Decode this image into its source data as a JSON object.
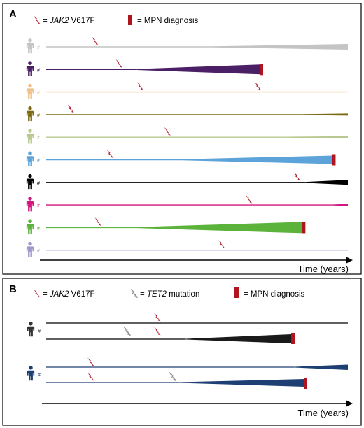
{
  "panel_a": {
    "letter": "A",
    "legend": {
      "jak2_gene": "JAK2",
      "jak2_variant": "V617F",
      "jak2_prefix": "= ",
      "mpn_label": "= MPN diagnosis"
    },
    "axis_label": "Time (years)",
    "allele_symbol": "#",
    "patients": [
      {
        "color": "#c4c4c4",
        "jak2_at": 0.16,
        "clone_start": 0.55,
        "clone_end_height": 8,
        "diagnosis": false
      },
      {
        "color": "#4b1f66",
        "jak2_at": 0.24,
        "clone_start": 0.3,
        "clone_end_height": 14,
        "diagnosis": true,
        "end": 0.71
      },
      {
        "color": "#f0c08a",
        "jak2_at": 0.31,
        "jak2_at_2": 0.7,
        "clone_start": null,
        "diagnosis": false
      },
      {
        "color": "#7d6a10",
        "jak2_at": 0.08,
        "clone_start": 0.85,
        "clone_end_height": 3,
        "diagnosis": false
      },
      {
        "color": "#b8c88e",
        "jak2_at": 0.4,
        "clone_start": 0.8,
        "clone_end_height": 3,
        "diagnosis": false
      },
      {
        "color": "#5ba3d8",
        "jak2_at": 0.21,
        "clone_start": 0.45,
        "clone_end_height": 12,
        "diagnosis": true,
        "end": 0.95
      },
      {
        "color": "#000000",
        "jak2_at": 0.83,
        "clone_start": 0.86,
        "clone_end_height": 7,
        "diagnosis": false
      },
      {
        "color": "#d2157f",
        "jak2_at": 0.67,
        "clone_start": 0.95,
        "clone_end_height": 3,
        "diagnosis": false
      },
      {
        "color": "#5cb33c",
        "jak2_at": 0.17,
        "clone_start": 0.3,
        "clone_end_height": 16,
        "diagnosis": true,
        "end": 0.85
      },
      {
        "color": "#a196cc",
        "jak2_at": 0.58,
        "clone_start": null,
        "diagnosis": false
      }
    ]
  },
  "panel_b": {
    "letter": "B",
    "legend": {
      "jak2_gene": "JAK2",
      "jak2_variant": "V617F",
      "jak2_prefix": "= ",
      "tet2_gene": "TET2",
      "tet2_suffix": " mutation",
      "tet2_prefix": "= ",
      "mpn_label": "= MPN diagnosis"
    },
    "axis_label": "Time (years)",
    "allele_symbol": "#",
    "patients": [
      {
        "color": "#333333"
      },
      {
        "color": "#1d3f73"
      }
    ]
  },
  "colors": {
    "jak2_bolt": "#b0202e",
    "tet2_bolt": "#9a9a9a",
    "diagnosis_bar": "#b0151f"
  },
  "icons": [
    "lightning-bolt-icon",
    "person-icon",
    "diagnosis-bar-icon",
    "arrow-icon"
  ]
}
